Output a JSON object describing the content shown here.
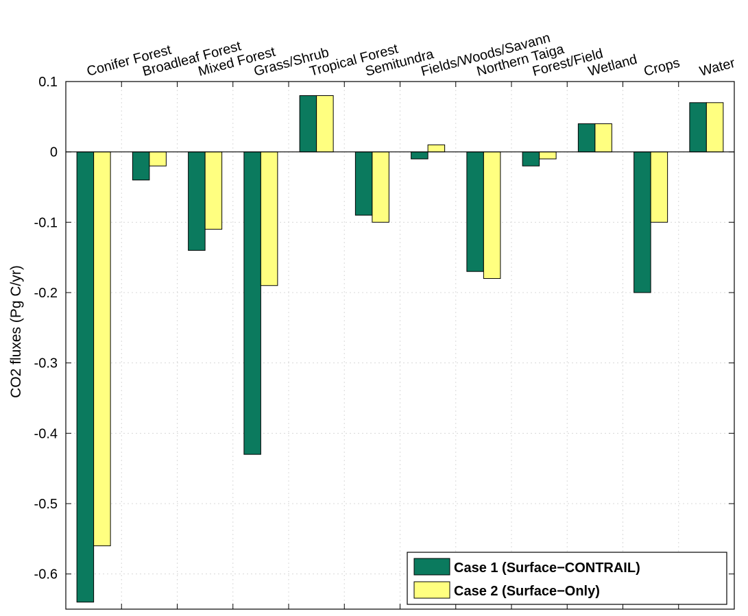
{
  "chart_data": {
    "type": "bar",
    "title": "",
    "xlabel": "",
    "ylabel": "CO2 fluxes (Pg C/yr)",
    "ylim": [
      -0.65,
      0.1
    ],
    "yticks": [
      0.1,
      0,
      -0.1,
      -0.2,
      -0.3,
      -0.4,
      -0.5,
      -0.6
    ],
    "ytick_labels": [
      "0.1",
      "0",
      "-0.1",
      "-0.2",
      "-0.3",
      "-0.4",
      "-0.5",
      "-0.6"
    ],
    "x_axis_position": "top",
    "grid": true,
    "legend_position": "bottom-right",
    "categories": [
      "Conifer Forest",
      "Broadleaf Forest",
      "Mixed Forest",
      "Grass/Shrub",
      "Tropical Forest",
      "Semitundra",
      "Fields/Woods/Savann",
      "Northern Taiga",
      "Forest/Field",
      "Wetland",
      "Crops",
      "Water"
    ],
    "series": [
      {
        "name": "Case 1 (Surface−CONTRAIL)",
        "color": "#0b7a5e",
        "values": [
          -0.64,
          -0.04,
          -0.14,
          -0.43,
          0.08,
          -0.09,
          -0.01,
          -0.17,
          -0.02,
          0.04,
          -0.2,
          0.07
        ]
      },
      {
        "name": "Case 2 (Surface−Only)",
        "color": "#ffff80",
        "values": [
          -0.56,
          -0.02,
          -0.11,
          -0.19,
          0.08,
          -0.1,
          0.01,
          -0.18,
          -0.01,
          0.04,
          -0.1,
          0.07
        ]
      }
    ]
  }
}
